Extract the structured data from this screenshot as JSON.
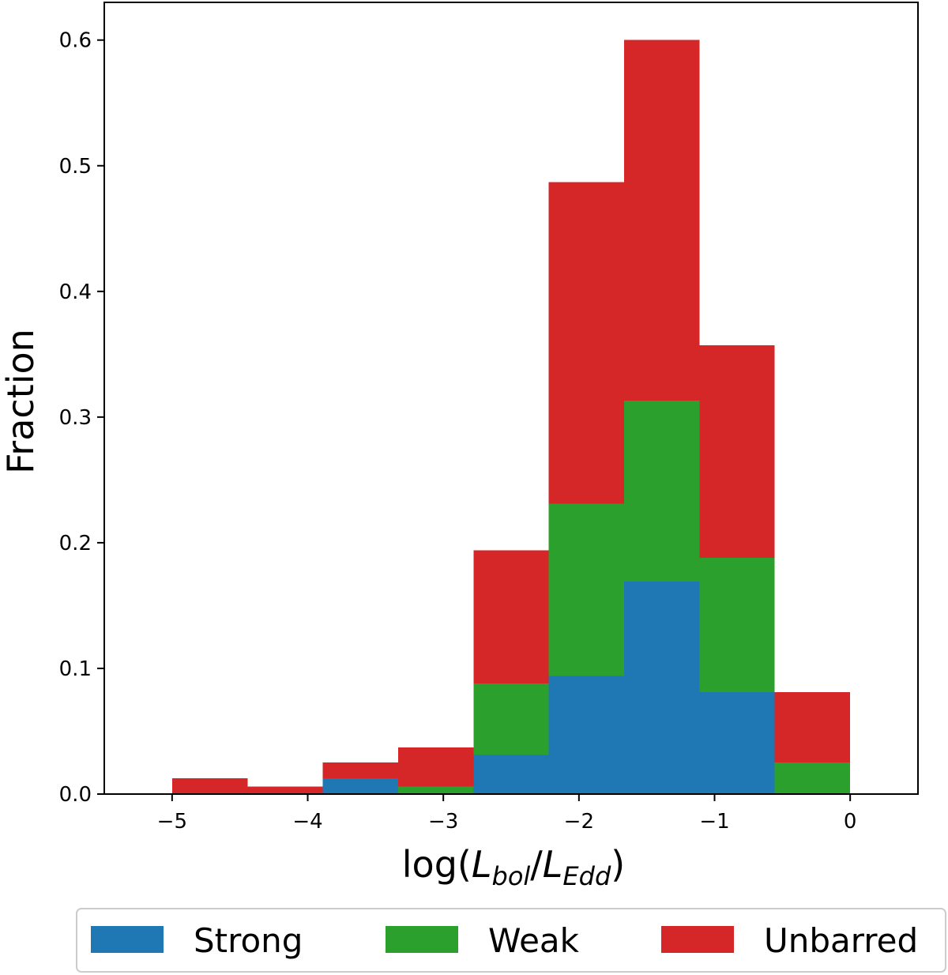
{
  "chart_data": {
    "type": "bar",
    "stacked": true,
    "title": "",
    "xlabel": {
      "prefix": "log(",
      "num": "L",
      "num_sub": "bol",
      "slash": "/",
      "den": "L",
      "den_sub": "Edd",
      "suffix": ")"
    },
    "ylabel": "Fraction",
    "xlim": [
      -5.5,
      0.5
    ],
    "ylim": [
      0,
      0.63
    ],
    "bin_edges": [
      -5.0,
      -4.444,
      -3.889,
      -3.333,
      -2.778,
      -2.222,
      -1.667,
      -1.111,
      -0.556,
      0.0
    ],
    "series": [
      {
        "name": "Strong",
        "color": "#1f77b4",
        "values": [
          0,
          0,
          0.0125,
          0,
          0.031,
          0.094,
          0.169,
          0.081,
          0
        ]
      },
      {
        "name": "Weak",
        "color": "#2ca02c",
        "values": [
          0,
          0,
          0,
          0.006,
          0.057,
          0.137,
          0.144,
          0.107,
          0.025
        ]
      },
      {
        "name": "Unbarred",
        "color": "#d62728",
        "values": [
          0.0125,
          0.006,
          0.0125,
          0.031,
          0.106,
          0.256,
          0.287,
          0.169,
          0.056
        ]
      }
    ],
    "xticks": [
      -5,
      -4,
      -3,
      -2,
      -1,
      0
    ],
    "xtick_labels": [
      "−5",
      "−4",
      "−3",
      "−2",
      "−1",
      "0"
    ],
    "yticks": [
      0.0,
      0.1,
      0.2,
      0.3,
      0.4,
      0.5,
      0.6
    ],
    "ytick_labels": [
      "0.0",
      "0.1",
      "0.2",
      "0.3",
      "0.4",
      "0.5",
      "0.6"
    ],
    "legend": {
      "placement": "bottom-center",
      "entries": [
        "Strong",
        "Weak",
        "Unbarred"
      ]
    }
  }
}
